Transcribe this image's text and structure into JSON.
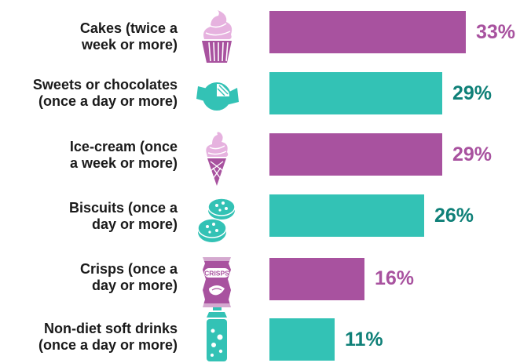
{
  "colors": {
    "purple": "#a8529f",
    "teal": "#33c2b5",
    "pct_purple": "#a8529f",
    "pct_teal": "#0f8078"
  },
  "chart_data": {
    "type": "bar",
    "orientation": "horizontal",
    "categories": [
      "Cakes (twice a week or more)",
      "Sweets or chocolates (once a day or more)",
      "Ice-cream (once a week or more)",
      "Biscuits (once a day or more)",
      "Crisps (once a day or more)",
      "Non-diet soft drinks (once a day or more)"
    ],
    "values": [
      33,
      29,
      29,
      26,
      16,
      11
    ],
    "unit": "%",
    "xlim": [
      0,
      33
    ],
    "grid": false,
    "legend": "none"
  },
  "rows": [
    {
      "label1": "Cakes (twice a",
      "label2": "week or more)",
      "pct": "33%",
      "color": "purple",
      "icon": "cupcake-icon"
    },
    {
      "label1": "Sweets or chocolates",
      "label2": "(once a day or more)",
      "pct": "29%",
      "color": "teal",
      "icon": "wrapped-sweet-icon"
    },
    {
      "label1": "Ice-cream (once",
      "label2": "a week or more)",
      "pct": "29%",
      "color": "purple",
      "icon": "ice-cream-cone-icon"
    },
    {
      "label1": "Biscuits (once a",
      "label2": "day or more)",
      "pct": "26%",
      "color": "teal",
      "icon": "biscuits-icon"
    },
    {
      "label1": "Crisps (once a",
      "label2": "day or more)",
      "pct": "16%",
      "color": "purple",
      "icon": "crisps-packet-icon",
      "icon_text": "CRISPS"
    },
    {
      "label1": "Non-diet soft drinks",
      "label2": "(once a day or more)",
      "pct": "11%",
      "color": "teal",
      "icon": "soft-drink-icon"
    }
  ]
}
